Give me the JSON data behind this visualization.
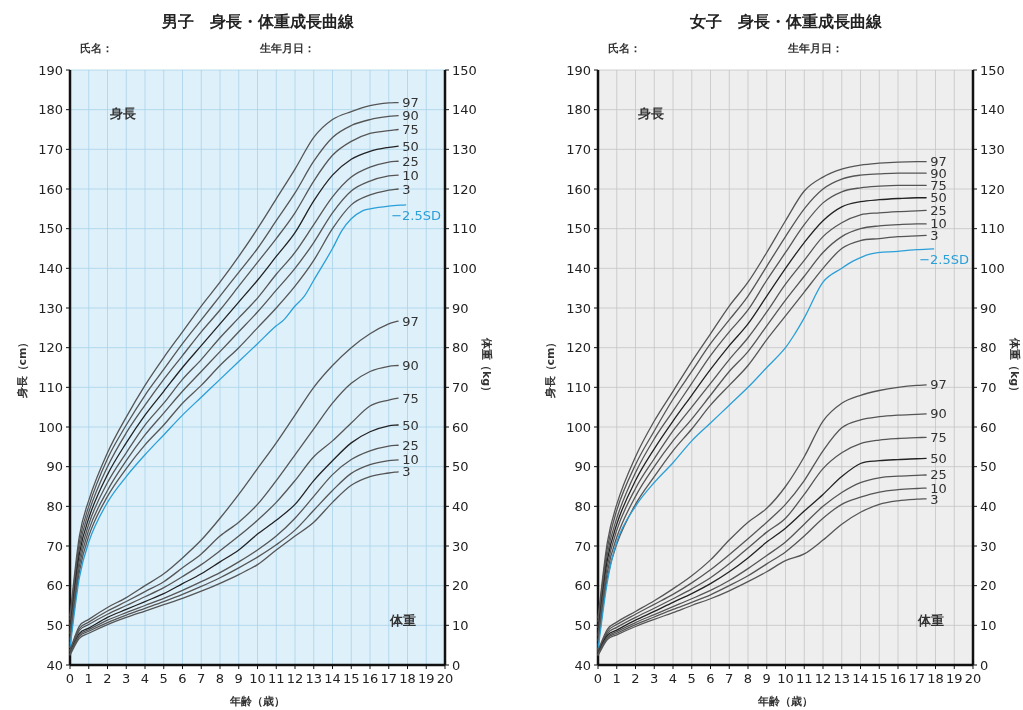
{
  "chart_data": [
    {
      "type": "line",
      "title": "男子　身長・体重成長曲線",
      "xlabel": "年齢（歳）",
      "ylabel": "身長（cm）",
      "y2label": "体重（kg）",
      "annotations": [
        "氏名：",
        "生年月日：",
        "身長",
        "体重"
      ],
      "grid": true,
      "legend": false,
      "x": [
        0,
        0.5,
        1,
        2,
        3,
        4,
        5,
        6,
        7,
        8,
        9,
        10,
        11,
        12,
        13,
        14,
        15,
        16,
        17,
        17.5
      ],
      "xlim": [
        0,
        20
      ],
      "xticks": [
        0,
        1,
        2,
        3,
        4,
        5,
        6,
        7,
        8,
        9,
        10,
        11,
        12,
        13,
        14,
        15,
        16,
        17,
        18,
        19,
        20
      ],
      "ylim": [
        40,
        190
      ],
      "yticks": [
        40,
        50,
        60,
        70,
        80,
        90,
        100,
        110,
        120,
        130,
        140,
        150,
        160,
        170,
        180,
        190
      ],
      "y2lim": [
        0,
        150
      ],
      "y2ticks": [
        0,
        10,
        20,
        30,
        40,
        50,
        60,
        70,
        80,
        90,
        100,
        110,
        120,
        130,
        140,
        150
      ],
      "series": [
        {
          "name": "97",
          "color": "#555555",
          "values": [
            52.5,
            72.5,
            81.5,
            93.5,
            102.5,
            110.5,
            117.5,
            124,
            130.5,
            136.5,
            143,
            150,
            157.5,
            165,
            173,
            177.5,
            179.5,
            181,
            181.7,
            181.8
          ]
        },
        {
          "name": "90",
          "color": "#555555",
          "values": [
            51.5,
            71,
            80,
            92,
            100.5,
            108,
            114.5,
            121,
            127,
            133,
            139,
            145,
            152,
            159,
            167,
            173,
            176,
            177.5,
            178.3,
            178.5
          ]
        },
        {
          "name": "75",
          "color": "#555555",
          "values": [
            50,
            69.5,
            78.5,
            90,
            98.5,
            105.5,
            112,
            118,
            124,
            129.5,
            135.5,
            141.5,
            147.5,
            154,
            162,
            168.5,
            172,
            174,
            174.7,
            175
          ]
        },
        {
          "name": "50",
          "color": "#222222",
          "values": [
            49,
            68,
            77,
            88,
            96,
            103,
            109,
            115,
            120.5,
            126,
            131.5,
            137,
            143,
            149,
            157,
            163.5,
            167.5,
            169.5,
            170.5,
            170.8
          ]
        },
        {
          "name": "25",
          "color": "#555555",
          "values": [
            48,
            66.5,
            75.5,
            86,
            93.5,
            100.5,
            106,
            112,
            117,
            122.5,
            127.5,
            132.5,
            138.5,
            144,
            151,
            158,
            163,
            165.5,
            166.8,
            167
          ]
        },
        {
          "name": "10",
          "color": "#555555",
          "values": [
            46.5,
            65,
            74,
            84,
            91.5,
            98,
            103.5,
            109,
            114,
            119,
            124,
            129,
            134.5,
            140,
            146.5,
            154,
            159.5,
            162,
            163.3,
            163.5
          ]
        },
        {
          "name": "3",
          "color": "#555555",
          "values": [
            45.5,
            63.5,
            72.5,
            82.5,
            89.5,
            95.5,
            100.5,
            106,
            110.5,
            115.5,
            120,
            125,
            130,
            135.5,
            142,
            150,
            156,
            158.5,
            159.7,
            160
          ]
        },
        {
          "name": "−2.5SD",
          "color": "#2a9fd8",
          "x": [
            0,
            0.5,
            1,
            2,
            3,
            4,
            5,
            6,
            7,
            8,
            9,
            10,
            11,
            11.4,
            12,
            12.5,
            13,
            14,
            14.5,
            15,
            15.6,
            16,
            17,
            17.9
          ],
          "values": [
            44.5,
            62,
            71,
            81,
            87.5,
            93,
            98,
            103,
            107.5,
            112,
            116.5,
            121,
            125.5,
            127,
            130.5,
            133,
            137,
            145,
            149.5,
            152.5,
            154.5,
            155,
            155.7,
            156
          ]
        },
        {
          "name": "97",
          "color": "#555555",
          "axis": "y2",
          "values": [
            3.8,
            9.8,
            11.5,
            14.5,
            17,
            20,
            23,
            27,
            31.5,
            37,
            43,
            49.5,
            56,
            63,
            70,
            75.5,
            80,
            83.5,
            86,
            86.7
          ]
        },
        {
          "name": "90",
          "color": "#555555",
          "axis": "y2",
          "values": [
            3.6,
            9.2,
            10.8,
            13.6,
            16,
            18.5,
            21,
            24.5,
            28,
            32.5,
            36,
            40.5,
            46.5,
            53,
            59.5,
            66,
            71,
            74,
            75.3,
            75.5
          ]
        },
        {
          "name": "75",
          "color": "#555555",
          "axis": "y2",
          "values": [
            3.4,
            8.7,
            10.2,
            12.8,
            15,
            17.2,
            19.5,
            22.3,
            25.3,
            28.8,
            32.5,
            36.5,
            41,
            46.5,
            52.5,
            56.5,
            61,
            65.3,
            66.8,
            67.3
          ]
        },
        {
          "name": "50",
          "color": "#222222",
          "axis": "y2",
          "values": [
            3,
            8,
            9.3,
            12,
            14,
            16,
            18,
            20.5,
            23,
            26,
            29,
            33,
            36.5,
            40.5,
            46.5,
            51.5,
            56,
            58.8,
            60.3,
            60.5
          ]
        },
        {
          "name": "25",
          "color": "#555555",
          "axis": "y2",
          "values": [
            2.9,
            7.6,
            8.9,
            11.3,
            13.2,
            15,
            16.8,
            18.8,
            21,
            23.3,
            26,
            29,
            32.5,
            37,
            42.5,
            48,
            51.8,
            54,
            55.2,
            55.4
          ]
        },
        {
          "name": "10",
          "color": "#555555",
          "axis": "y2",
          "values": [
            2.7,
            7.2,
            8.5,
            10.7,
            12.6,
            14.3,
            16,
            17.8,
            19.8,
            22,
            24.5,
            27.2,
            30.3,
            34,
            39,
            44,
            48.3,
            50.5,
            51.5,
            51.7
          ]
        },
        {
          "name": "3",
          "color": "#555555",
          "axis": "y2",
          "values": [
            2.5,
            6.7,
            8,
            10.2,
            12,
            13.6,
            15.2,
            16.8,
            18.6,
            20.6,
            22.8,
            25.3,
            29,
            32.5,
            36,
            41,
            45.3,
            47.5,
            48.4,
            48.7
          ]
        }
      ]
    },
    {
      "type": "line",
      "title": "女子　身長・体重成長曲線",
      "xlabel": "年齢（歳）",
      "ylabel": "身長（cm）",
      "y2label": "体重（kg）",
      "annotations": [
        "氏名：",
        "生年月日：",
        "身長",
        "体重"
      ],
      "grid": true,
      "legend": false,
      "x": [
        0,
        0.5,
        1,
        2,
        3,
        4,
        5,
        6,
        7,
        8,
        9,
        10,
        11,
        12,
        13,
        14,
        15,
        16,
        17,
        17.5
      ],
      "xlim": [
        0,
        20
      ],
      "xticks": [
        0,
        1,
        2,
        3,
        4,
        5,
        6,
        7,
        8,
        9,
        10,
        11,
        12,
        13,
        14,
        15,
        16,
        17,
        18,
        19,
        20
      ],
      "ylim": [
        40,
        190
      ],
      "yticks": [
        40,
        50,
        60,
        70,
        80,
        90,
        100,
        110,
        120,
        130,
        140,
        150,
        160,
        170,
        180,
        190
      ],
      "y2lim": [
        0,
        150
      ],
      "y2ticks": [
        0,
        10,
        20,
        30,
        40,
        50,
        60,
        70,
        80,
        90,
        100,
        110,
        120,
        130,
        140,
        150
      ],
      "series": [
        {
          "name": "97",
          "color": "#555555",
          "values": [
            52,
            71,
            80.5,
            92.5,
            101.5,
            109,
            116.5,
            123.5,
            130.5,
            136.5,
            144,
            152,
            159.5,
            163,
            165,
            166,
            166.5,
            166.8,
            166.9,
            166.9
          ]
        },
        {
          "name": "90",
          "color": "#555555",
          "values": [
            51,
            69.5,
            79,
            90.5,
            99,
            107,
            114,
            121,
            127,
            133,
            140.5,
            148,
            155,
            160,
            162.5,
            163.5,
            163.8,
            164,
            164,
            164
          ]
        },
        {
          "name": "75",
          "color": "#555555",
          "values": [
            49.5,
            68,
            77,
            88.5,
            97,
            104,
            111,
            118,
            124,
            129.5,
            137,
            144,
            151,
            156.5,
            159.3,
            160.3,
            160.7,
            160.9,
            160.9,
            160.9
          ]
        },
        {
          "name": "50",
          "color": "#222222",
          "values": [
            48.5,
            66.5,
            75.5,
            86.5,
            94.5,
            101.5,
            108,
            114.5,
            120.5,
            126,
            133,
            140,
            146.5,
            152,
            155.5,
            156.8,
            157.3,
            157.6,
            157.8,
            157.8
          ]
        },
        {
          "name": "25",
          "color": "#555555",
          "values": [
            47.5,
            65,
            74,
            84.5,
            92,
            99,
            105,
            111,
            117,
            122.5,
            129,
            136,
            142,
            148,
            151.5,
            153.5,
            154,
            154.3,
            154.5,
            154.6
          ]
        },
        {
          "name": "10",
          "color": "#555555",
          "values": [
            46.2,
            63.5,
            72.2,
            82.5,
            90,
            96.5,
            102,
            108,
            114,
            119,
            125.5,
            132,
            138,
            144,
            148,
            150,
            150.7,
            151,
            151.2,
            151.2
          ]
        },
        {
          "name": "3",
          "color": "#555555",
          "values": [
            45,
            62,
            70.5,
            80.5,
            87.5,
            94,
            99.5,
            105.5,
            110.5,
            115.5,
            122,
            128,
            134,
            140,
            145,
            147,
            147.5,
            148,
            148.2,
            148.3
          ]
        },
        {
          "name": "−2.5SD",
          "color": "#2a9fd8",
          "x": [
            0,
            0.5,
            1,
            2,
            3,
            4,
            5,
            6,
            7,
            8,
            9,
            10,
            10.5,
            11,
            12,
            13,
            13.6,
            14.5,
            16,
            17,
            17.9
          ],
          "values": [
            44,
            61,
            71,
            80,
            86,
            91,
            96.5,
            101,
            105.5,
            110,
            115,
            120,
            123.5,
            127.5,
            136.5,
            140,
            141.8,
            143.6,
            144.3,
            144.7,
            144.9
          ]
        },
        {
          "name": "97",
          "color": "#555555",
          "axis": "y2",
          "values": [
            3.6,
            9,
            10.8,
            13.5,
            16.2,
            19.2,
            22.5,
            26.5,
            31.5,
            36,
            39.5,
            45,
            52.5,
            61.5,
            66,
            68,
            69.2,
            70,
            70.5,
            70.6
          ]
        },
        {
          "name": "90",
          "color": "#555555",
          "axis": "y2",
          "values": [
            3.4,
            8.5,
            10.2,
            12.8,
            15.3,
            17.8,
            20.7,
            24,
            27.8,
            31.8,
            36,
            40.5,
            46.5,
            54,
            59.8,
            61.8,
            62.6,
            63,
            63.2,
            63.3
          ]
        },
        {
          "name": "75",
          "color": "#555555",
          "axis": "y2",
          "values": [
            3.2,
            8,
            9.5,
            12,
            14.3,
            16.7,
            19.2,
            22,
            25.5,
            29.5,
            33.5,
            37,
            43,
            49.5,
            53.5,
            55.8,
            56.7,
            57.1,
            57.3,
            57.4
          ]
        },
        {
          "name": "50",
          "color": "#222222",
          "axis": "y2",
          "values": [
            3,
            7.5,
            8.8,
            11.3,
            13.5,
            15.8,
            18,
            20.5,
            23.5,
            27,
            31,
            34.5,
            38.8,
            43,
            47.5,
            50.8,
            51.5,
            51.8,
            52,
            52.1
          ]
        },
        {
          "name": "25",
          "color": "#555555",
          "axis": "y2",
          "values": [
            2.8,
            7.1,
            8.4,
            10.7,
            12.7,
            14.7,
            16.7,
            18.8,
            21.3,
            24.3,
            27.6,
            31,
            35.5,
            40,
            43.5,
            46,
            47.2,
            47.6,
            47.8,
            47.9
          ]
        },
        {
          "name": "10",
          "color": "#555555",
          "axis": "y2",
          "values": [
            2.6,
            6.8,
            8,
            10.2,
            12.1,
            14,
            15.8,
            17.7,
            20,
            22.5,
            25.5,
            28.5,
            32.5,
            37,
            40.5,
            42.3,
            43.6,
            44.2,
            44.5,
            44.6
          ]
        },
        {
          "name": "3",
          "color": "#555555",
          "axis": "y2",
          "values": [
            2.4,
            6.4,
            7.6,
            9.7,
            11.5,
            13.2,
            15,
            16.7,
            18.7,
            21,
            23.5,
            26.3,
            28,
            31.5,
            35.5,
            38.5,
            40.5,
            41.4,
            41.8,
            41.9
          ]
        }
      ]
    }
  ]
}
